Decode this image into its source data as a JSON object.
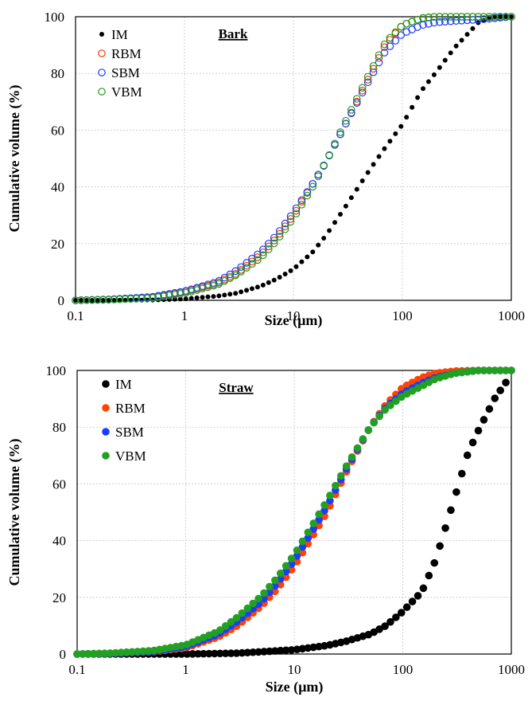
{
  "chart_data": [
    {
      "type": "scatter",
      "title": "Bark",
      "xlabel": "Size (µm)",
      "ylabel": "Cumulative volume (%)",
      "x_scale": "log",
      "xlim": [
        0.1,
        1000
      ],
      "ylim": [
        0,
        100
      ],
      "x_ticks": [
        "0.1",
        "1",
        "10",
        "100",
        "1000"
      ],
      "y_ticks": [
        "0",
        "20",
        "40",
        "60",
        "80",
        "100"
      ],
      "marker_style": "open",
      "legend_position": "top-left",
      "series": [
        {
          "name": "IM",
          "color": "#000000",
          "x": [
            0.1,
            0.2,
            0.5,
            1,
            2,
            3,
            5,
            7,
            10,
            15,
            20,
            30,
            50,
            70,
            100,
            150,
            200,
            300,
            500,
            700,
            1000
          ],
          "y": [
            0,
            0,
            0.1,
            0.5,
            1.5,
            2.5,
            5,
            7.5,
            11,
            17,
            23,
            33,
            46,
            54,
            62,
            74,
            80,
            89,
            98,
            100,
            100
          ]
        },
        {
          "name": "RBM",
          "color": "#ff3300",
          "x": [
            0.1,
            0.2,
            0.5,
            1,
            2,
            3,
            5,
            7,
            10,
            15,
            20,
            30,
            50,
            70,
            100,
            150,
            200,
            300,
            500,
            1000
          ],
          "y": [
            0,
            0.3,
            1,
            3,
            6,
            9.5,
            16,
            22,
            30,
            41,
            49,
            62,
            79,
            90,
            97,
            99.5,
            100,
            100,
            100,
            100
          ]
        },
        {
          "name": "SBM",
          "color": "#1a3cff",
          "x": [
            0.1,
            0.2,
            0.5,
            1,
            2,
            3,
            5,
            7,
            10,
            15,
            20,
            30,
            50,
            70,
            100,
            150,
            200,
            300,
            500,
            1000
          ],
          "y": [
            0,
            0.3,
            1.2,
            3.2,
            6.5,
            10.5,
            17,
            23,
            31,
            41,
            49,
            62,
            78,
            88,
            94,
            97,
            98,
            98.5,
            99,
            100
          ]
        },
        {
          "name": "VBM",
          "color": "#1a9e1a",
          "x": [
            0.1,
            0.2,
            0.5,
            1,
            2,
            3,
            5,
            7,
            10,
            15,
            20,
            30,
            50,
            70,
            100,
            150,
            200,
            300,
            500,
            1000
          ],
          "y": [
            0,
            0.2,
            0.8,
            2.5,
            5.5,
            9,
            15,
            21,
            29,
            40,
            49,
            63,
            80,
            91,
            97,
            99.5,
            100,
            100,
            100,
            100
          ]
        }
      ]
    },
    {
      "type": "scatter",
      "title": "Straw",
      "xlabel": "Size (µm)",
      "ylabel": "Cumulative volume (%)",
      "x_scale": "log",
      "xlim": [
        0.1,
        1000
      ],
      "ylim": [
        0,
        100
      ],
      "x_ticks": [
        "0.1",
        "1",
        "10",
        "100",
        "1000"
      ],
      "y_ticks": [
        "0",
        "20",
        "40",
        "60",
        "80",
        "100"
      ],
      "marker_style": "filled",
      "legend_position": "top-left",
      "series": [
        {
          "name": "IM",
          "color": "#000000",
          "x": [
            0.1,
            1,
            3,
            5,
            10,
            20,
            30,
            50,
            70,
            100,
            150,
            200,
            300,
            400,
            500,
            700,
            900
          ],
          "y": [
            0,
            0,
            0.3,
            0.8,
            1.5,
            3,
            4.5,
            7,
            10,
            15,
            22,
            33,
            55,
            71,
            79,
            90,
            96
          ]
        },
        {
          "name": "RBM",
          "color": "#ff4400",
          "x": [
            0.1,
            0.2,
            0.5,
            1,
            2,
            3,
            5,
            7,
            10,
            15,
            20,
            30,
            50,
            70,
            100,
            150,
            200,
            300,
            500,
            1000
          ],
          "y": [
            0,
            0.2,
            0.8,
            2.2,
            6,
            10,
            17,
            23,
            31,
            42,
            50,
            64,
            80,
            88,
            94,
            97.5,
            99,
            99.8,
            100,
            100
          ]
        },
        {
          "name": "SBM",
          "color": "#1a3cff",
          "x": [
            0.1,
            0.2,
            0.5,
            1,
            2,
            3,
            5,
            7,
            10,
            15,
            20,
            30,
            50,
            70,
            100,
            150,
            200,
            300,
            500,
            1000
          ],
          "y": [
            0,
            0.2,
            0.9,
            2.6,
            7,
            11.5,
            18.5,
            25,
            33,
            44,
            52,
            65,
            80,
            87,
            92,
            95.5,
            97.5,
            99,
            100,
            100
          ]
        },
        {
          "name": "VBM",
          "color": "#22a022",
          "x": [
            0.1,
            0.2,
            0.5,
            1,
            2,
            3,
            5,
            7,
            10,
            15,
            20,
            30,
            50,
            70,
            100,
            150,
            200,
            300,
            500,
            1000
          ],
          "y": [
            0,
            0.3,
            1.2,
            3.2,
            8,
            13,
            20.5,
            27,
            35,
            46,
            54,
            66,
            80,
            86.5,
            91,
            94.5,
            97,
            99,
            100,
            100
          ]
        }
      ]
    }
  ]
}
